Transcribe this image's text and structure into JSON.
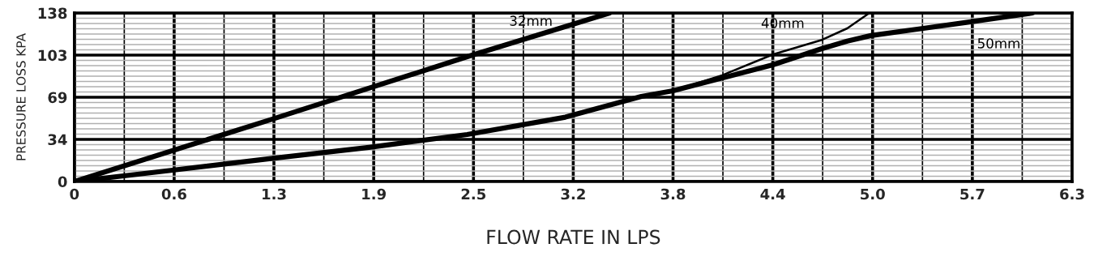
{
  "chart_data": {
    "type": "line",
    "xlabel": "FLOW RATE IN LPS",
    "ylabel": "PRESSURE LOSS KPA",
    "xlim": [
      0,
      6.3
    ],
    "ylim": [
      0,
      138
    ],
    "xticks": [
      0,
      {
        "value": 0.63,
        "label": "0.6"
      },
      {
        "value": 1.26,
        "label": "1.3"
      },
      {
        "value": 1.89,
        "label": "1.9"
      },
      {
        "value": 2.52,
        "label": "2.5"
      },
      {
        "value": 3.15,
        "label": "3.2"
      },
      {
        "value": 3.78,
        "label": "3.8"
      },
      {
        "value": 4.41,
        "label": "4.4"
      },
      {
        "value": 5.04,
        "label": "5.0"
      },
      {
        "value": 5.67,
        "label": "5.7"
      },
      {
        "value": 6.3,
        "label": "6.3"
      }
    ],
    "yticks": [
      0,
      {
        "value": 34.5,
        "label": "34"
      },
      69,
      {
        "value": 103.5,
        "label": "103"
      },
      138
    ],
    "grid": true,
    "legend": false,
    "marker": "none",
    "line_style": "solid",
    "series": [
      {
        "name": "32mm",
        "color": "#000000",
        "x": [
          0,
          1.26,
          2.5,
          3.38
        ],
        "values": [
          0,
          51.5,
          103,
          138
        ]
      },
      {
        "name": "50mm",
        "color": "#000000",
        "x": [
          0,
          0.62,
          1.23,
          1.86,
          2.48,
          3.1,
          3.58,
          3.78,
          4.41,
          4.72,
          4.88,
          5.03,
          5.36,
          5.67,
          6.05
        ],
        "values": [
          0,
          9.3,
          18.6,
          28,
          38.5,
          52.7,
          69.7,
          74.3,
          95.5,
          108.8,
          115,
          119.5,
          125.4,
          131,
          138
        ]
      },
      {
        "name": "40mm",
        "color": "#000000",
        "x": [
          3.78,
          4.09,
          4.41,
          4.72,
          4.88,
          5.02
        ],
        "values": [
          74.3,
          87,
          104,
          116,
          125.4,
          138
        ]
      }
    ]
  }
}
